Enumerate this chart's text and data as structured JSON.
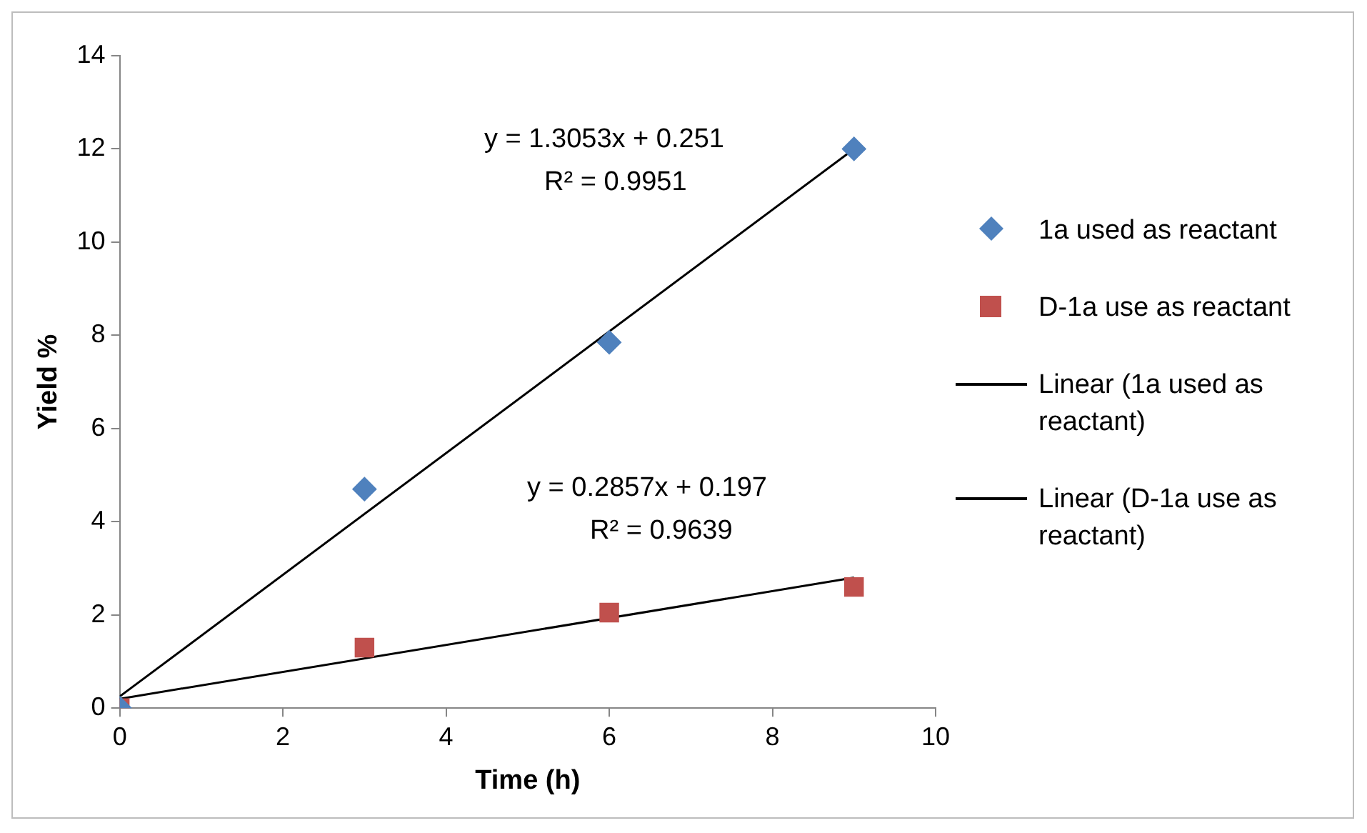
{
  "chart_data": {
    "type": "scatter",
    "xlabel": "Time (h)",
    "ylabel": "Yield %",
    "xlim": [
      0,
      10
    ],
    "xticks": [
      0,
      2,
      4,
      6,
      8,
      10
    ],
    "ylim": [
      0,
      14
    ],
    "yticks": [
      0,
      2,
      4,
      6,
      8,
      10,
      12,
      14
    ],
    "grid": false,
    "legend": "right",
    "series": [
      {
        "name": "1a used as reactant",
        "type": "scatter",
        "marker": "diamond",
        "color": "#4f81bd",
        "x": [
          0,
          3,
          6,
          9
        ],
        "values": [
          0,
          4.7,
          7.85,
          12
        ]
      },
      {
        "name": "D-1a use as reactant",
        "type": "scatter",
        "marker": "square",
        "color": "#c0504d",
        "x": [
          0,
          3,
          6,
          9
        ],
        "values": [
          0,
          1.3,
          2.05,
          2.6
        ]
      },
      {
        "name": "Linear (1a used as reactant)",
        "type": "line",
        "marker": "none",
        "color": "#000000",
        "x": [
          0,
          9
        ],
        "values": [
          0.25,
          12
        ]
      },
      {
        "name": "Linear (D-1a use as reactant)",
        "type": "line",
        "marker": "none",
        "color": "#000000",
        "x": [
          0,
          9
        ],
        "values": [
          0.2,
          2.8
        ]
      }
    ],
    "annotations": [
      "y = 1.3053x + 0.251",
      "R² = 0.9951",
      "y = 0.2857x + 0.197",
      "R² = 0.9639"
    ]
  }
}
